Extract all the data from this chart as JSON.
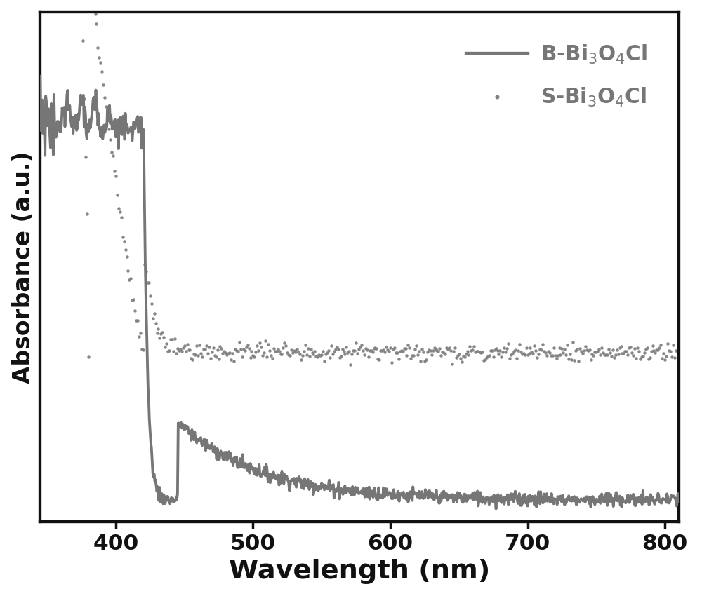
{
  "color_solid": "#767676",
  "color_dotted": "#828282",
  "color_axes": "#111111",
  "xlabel": "Wavelength (nm)",
  "ylabel": "Absorbance (a.u.)",
  "xlim": [
    345,
    810
  ],
  "xticks": [
    400,
    500,
    600,
    700,
    800
  ],
  "legend_label_solid": "B-Bi$_3$O$_4$Cl",
  "legend_label_dotted": "S-Bi$_3$O$_4$Cl",
  "xlabel_fontsize": 22,
  "ylabel_fontsize": 19,
  "tick_fontsize": 18,
  "legend_fontsize": 17,
  "linewidth_solid": 2.2,
  "linewidth_dotted": 2.2,
  "figsize": [
    8.0,
    6.8
  ],
  "dpi": 125
}
